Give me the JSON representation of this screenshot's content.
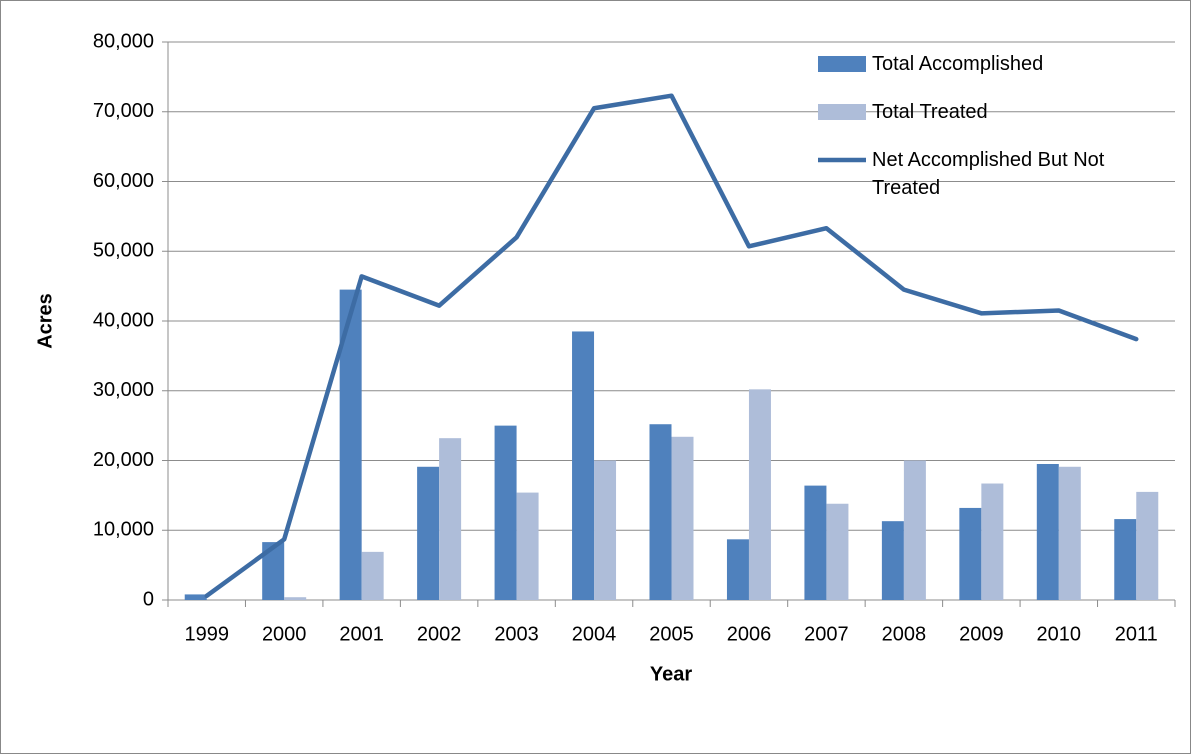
{
  "chart_data": {
    "type": "bar",
    "y_label": "Acres",
    "x_label": "Year",
    "categories": [
      "1999",
      "2000",
      "2001",
      "2002",
      "2003",
      "2004",
      "2005",
      "2006",
      "2007",
      "2008",
      "2009",
      "2010",
      "2011"
    ],
    "series": [
      {
        "name": "Total Accomplished",
        "type": "bar",
        "color": "#4f81bd",
        "values": [
          800,
          8300,
          44500,
          19100,
          25000,
          38500,
          25200,
          8700,
          16400,
          11300,
          13200,
          19500,
          11600
        ]
      },
      {
        "name": "Total Treated",
        "type": "bar",
        "color": "#aebdd9",
        "values": [
          0,
          400,
          6900,
          23200,
          15400,
          20000,
          23400,
          30200,
          13800,
          20000,
          16700,
          19100,
          15500
        ]
      },
      {
        "name": "Net Accomplished But Not Treated",
        "type": "line",
        "color": "#3d6ca4",
        "values": [
          600,
          8700,
          46400,
          42200,
          52000,
          70500,
          72300,
          50700,
          53300,
          44500,
          41100,
          41500,
          37400
        ]
      }
    ],
    "ylim": [
      0,
      80000
    ],
    "yticks": [
      0,
      {
        "value": 10000,
        "label": "10,000"
      },
      {
        "value": 20000,
        "label": "20,000"
      },
      {
        "value": 30000,
        "label": "30,000"
      },
      {
        "value": 40000,
        "label": "40,000"
      },
      {
        "value": 50000,
        "label": "50,000"
      },
      {
        "value": 60000,
        "label": "60,000"
      },
      {
        "value": 70000,
        "label": "70,000"
      },
      {
        "value": 80000,
        "label": "80,000"
      }
    ],
    "grid": true
  }
}
